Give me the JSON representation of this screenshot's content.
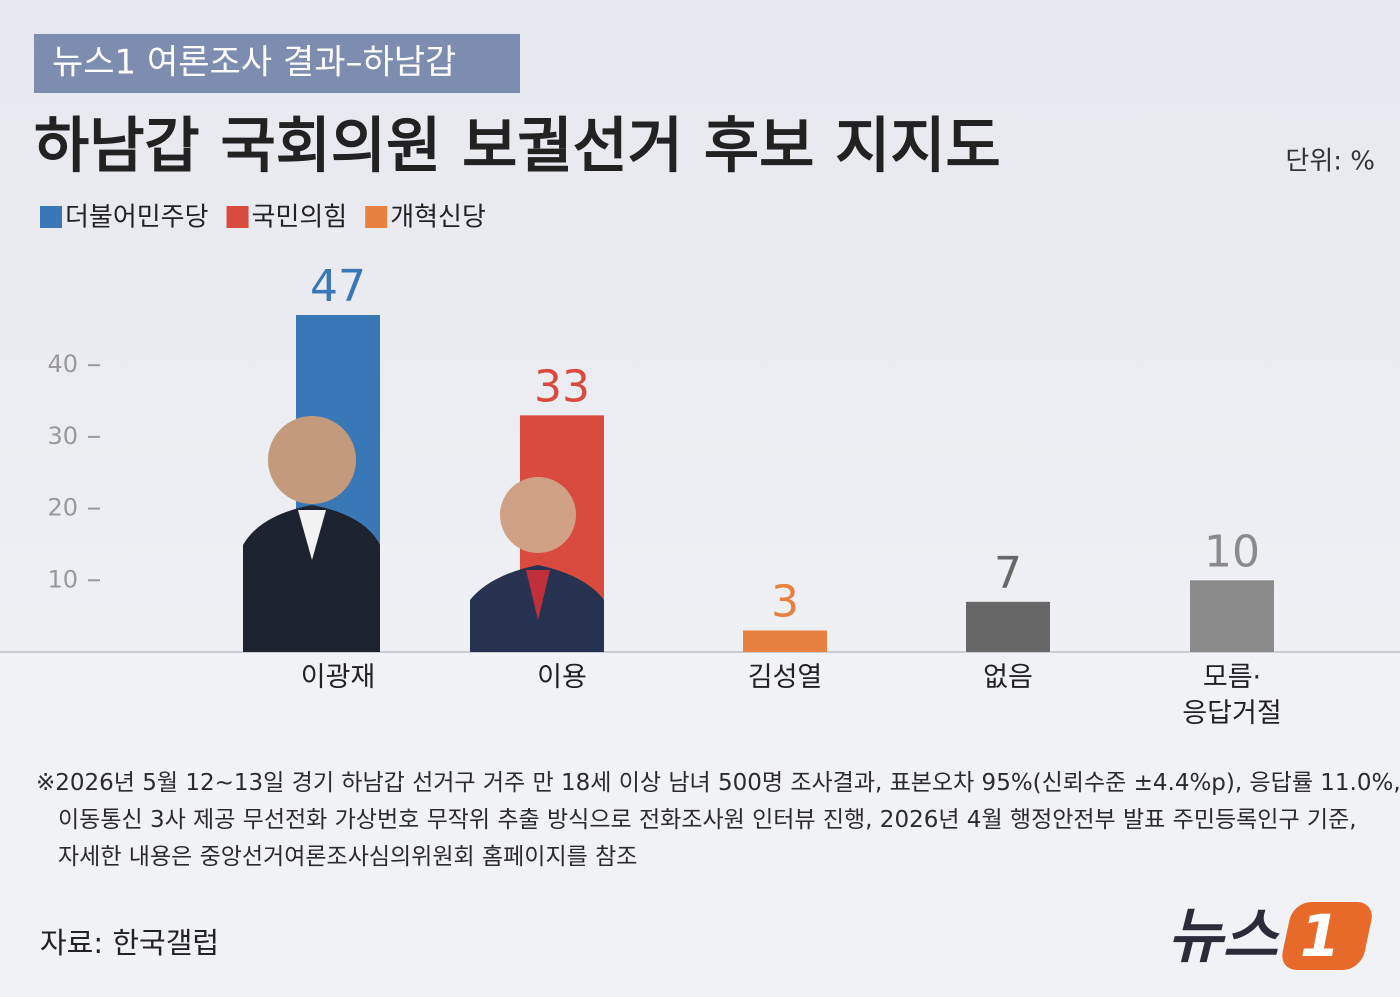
{
  "header": {
    "tag": "뉴스1 여론조사 결과–하남갑",
    "unit": "단위: %"
  },
  "chart_data": {
    "type": "bar",
    "title": "하남갑 국회의원 보궐선거 후보 지지도",
    "legend": [
      {
        "name": "더불어민주당",
        "color": "#3a77b7"
      },
      {
        "name": "국민의힘",
        "color": "#d94b3e"
      },
      {
        "name": "개혁신당",
        "color": "#e8803f"
      }
    ],
    "categories": [
      "이광재",
      "이용",
      "김성열",
      "없음",
      "모름·\n응답거절"
    ],
    "values": [
      47,
      33,
      3,
      7,
      10
    ],
    "colors": [
      "#3a77b7",
      "#d94b3e",
      "#e8803f",
      "#676767",
      "#8a8a8a"
    ],
    "ylim": [
      0,
      50
    ],
    "yticks": [
      10,
      20,
      30,
      40
    ],
    "grid": false
  },
  "footnote": [
    "※2026년 5월 12~13일 경기 하남갑 선거구 거주 만 18세 이상 남녀 500명 조사결과, 표본오차 95%(신뢰수준 ±4.4%p), 응답률 11.0%,",
    "이동통신 3사 제공 무선전화 가상번호 무작위 추출 방식으로 전화조사원 인터뷰 진행, 2026년 4월 행정안전부 발표 주민등록인구 기준,",
    "자세한 내용은 중앙선거여론조사심의위원회 홈페이지를 참조"
  ],
  "source": "자료: 한국갤럽",
  "logo": {
    "text": "뉴스",
    "number": "1"
  }
}
